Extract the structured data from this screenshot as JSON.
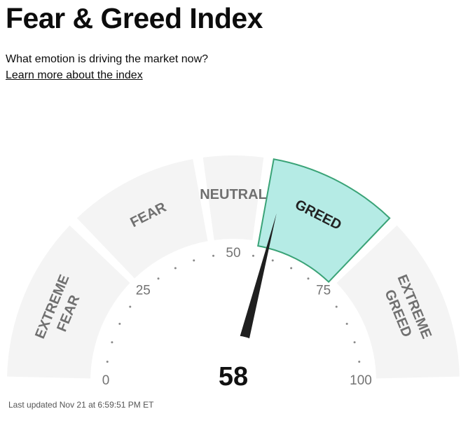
{
  "header": {
    "title": "Fear & Greed Index",
    "subtitle": "What emotion is driving the market now?",
    "learn_more": "Learn more about the index"
  },
  "gauge": {
    "value": 58,
    "value_label": "58",
    "current_rating": "GREED",
    "segments": [
      {
        "name": "extreme-fear",
        "label_lines": [
          "EXTREME",
          "FEAR"
        ],
        "range": [
          0,
          25
        ]
      },
      {
        "name": "fear",
        "label_lines": [
          "FEAR"
        ],
        "range": [
          25,
          45
        ]
      },
      {
        "name": "neutral",
        "label_lines": [
          "NEUTRAL"
        ],
        "range": [
          45,
          55
        ]
      },
      {
        "name": "greed",
        "label_lines": [
          "GREED"
        ],
        "range": [
          55,
          75
        ]
      },
      {
        "name": "extreme-greed",
        "label_lines": [
          "EXTREME",
          "GREED"
        ],
        "range": [
          75,
          100
        ]
      }
    ],
    "tick_labels": [
      {
        "value": 0,
        "label": "0"
      },
      {
        "value": 25,
        "label": "25"
      },
      {
        "value": 50,
        "label": "50"
      },
      {
        "value": 75,
        "label": "75"
      },
      {
        "value": 100,
        "label": "100"
      }
    ],
    "colors": {
      "segment_fill": "#f4f4f4",
      "active_fill": "#b5ebe5",
      "active_stroke": "#3aa377",
      "label": "#707070",
      "needle": "#1f1f1f",
      "tick_text": "#737373"
    }
  },
  "footer": {
    "last_updated": "Last updated Nov 21 at 6:59:51 PM ET"
  }
}
